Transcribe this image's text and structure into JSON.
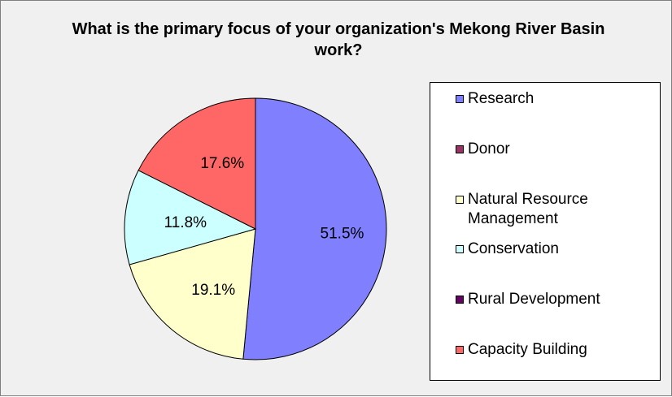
{
  "chart_data": {
    "type": "pie",
    "title": "What is the primary focus of your organization's Mekong River Basin work?",
    "slices": [
      {
        "name": "Research",
        "value": 51.5,
        "label": "51.5%",
        "color": "#8080ff"
      },
      {
        "name": "Donor",
        "value": 0,
        "label": "",
        "color": "#993366"
      },
      {
        "name": "Natural Resource Management",
        "value": 19.1,
        "label": "19.1%",
        "color": "#ffffcc"
      },
      {
        "name": "Conservation",
        "value": 11.8,
        "label": "11.8%",
        "color": "#ccffff"
      },
      {
        "name": "Rural Development",
        "value": 0,
        "label": "",
        "color": "#660066"
      },
      {
        "name": "Capacity Building",
        "value": 17.6,
        "label": "17.6%",
        "color": "#ff6666"
      }
    ],
    "legend_position": "right"
  }
}
